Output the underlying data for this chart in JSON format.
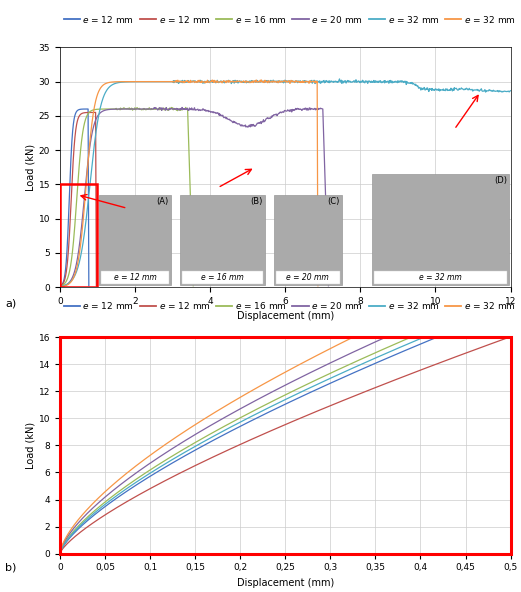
{
  "legend_labels": [
    "e = 12 mm",
    "e = 12 mm",
    "e = 16 mm",
    "e = 20 mm",
    "e = 32 mm",
    "e = 32 mm"
  ],
  "legend_colors": [
    "#4472c4",
    "#c0504d",
    "#9bbb59",
    "#8064a2",
    "#4bacc6",
    "#f79646"
  ],
  "plot_a": {
    "xlabel": "Displacement (mm)",
    "ylabel": "Load (kN)",
    "xlim": [
      0,
      12
    ],
    "ylim": [
      0,
      35
    ],
    "xticks": [
      0,
      2,
      4,
      6,
      8,
      10,
      12
    ],
    "yticks": [
      0,
      5,
      10,
      15,
      20,
      25,
      30,
      35
    ]
  },
  "plot_b": {
    "xlabel": "Displacement (mm)",
    "ylabel": "Load (kN)",
    "xlim": [
      0,
      0.5
    ],
    "ylim": [
      0,
      16
    ],
    "xticks": [
      0,
      0.05,
      0.1,
      0.15,
      0.2,
      0.25,
      0.3,
      0.35,
      0.4,
      0.45,
      0.5
    ],
    "yticks": [
      0,
      2,
      4,
      6,
      8,
      10,
      12,
      14,
      16
    ]
  },
  "background_color": "#ffffff",
  "grid_color": "#cccccc",
  "label_a": "a)",
  "label_b": "b)"
}
